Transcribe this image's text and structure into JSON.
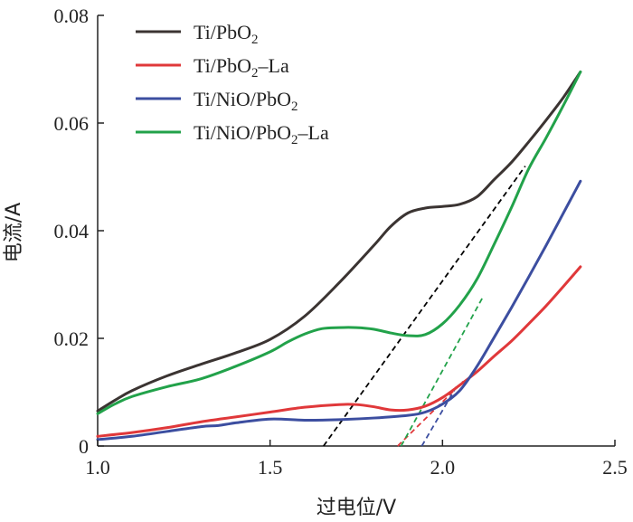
{
  "chart_data": {
    "type": "line",
    "title": "",
    "xlabel": "过电位/V",
    "ylabel": "电流/A",
    "xlim": [
      1.0,
      2.5
    ],
    "ylim": [
      0,
      0.08
    ],
    "xticks": [
      1.0,
      1.5,
      2.0,
      2.5
    ],
    "xtick_labels": [
      "1.0",
      "1.5",
      "2.0",
      "2.5"
    ],
    "yticks": [
      0,
      0.02,
      0.04,
      0.06,
      0.08
    ],
    "ytick_labels": [
      "0",
      "0.02",
      "0.04",
      "0.06",
      "0.08"
    ],
    "grid": false,
    "legend_position": "top-left",
    "series": [
      {
        "name": "Ti/PbO2",
        "legend_main": "Ti/PbO",
        "legend_sub": "2",
        "legend_suffix": "",
        "color": "#3b3432",
        "x": [
          1.0,
          1.05,
          1.1,
          1.2,
          1.3,
          1.4,
          1.5,
          1.6,
          1.7,
          1.8,
          1.85,
          1.9,
          1.95,
          2.0,
          2.05,
          2.1,
          2.15,
          2.2,
          2.25,
          2.3,
          2.35,
          2.4
        ],
        "y": [
          0.0065,
          0.0085,
          0.0103,
          0.013,
          0.0152,
          0.0173,
          0.0198,
          0.0241,
          0.0303,
          0.0372,
          0.0408,
          0.0433,
          0.0442,
          0.0445,
          0.0449,
          0.0463,
          0.0495,
          0.0527,
          0.0565,
          0.0605,
          0.0647,
          0.0695
        ]
      },
      {
        "name": "Ti/PbO2-La",
        "legend_main": "Ti/PbO",
        "legend_sub": "2",
        "legend_suffix": "–La",
        "color": "#e0383a",
        "x": [
          1.0,
          1.1,
          1.2,
          1.3,
          1.4,
          1.5,
          1.6,
          1.7,
          1.75,
          1.8,
          1.85,
          1.9,
          1.95,
          2.0,
          2.05,
          2.1,
          2.15,
          2.2,
          2.25,
          2.3,
          2.35,
          2.4
        ],
        "y": [
          0.0018,
          0.0025,
          0.0034,
          0.0045,
          0.0054,
          0.0063,
          0.0072,
          0.0077,
          0.0077,
          0.0073,
          0.0067,
          0.0067,
          0.0074,
          0.009,
          0.0113,
          0.0138,
          0.0167,
          0.0195,
          0.0227,
          0.026,
          0.0296,
          0.0333
        ]
      },
      {
        "name": "Ti/NiO/PbO2",
        "legend_main": "Ti/NiO/PbO",
        "legend_sub": "2",
        "legend_suffix": "",
        "color": "#3c4ea0",
        "x": [
          1.0,
          1.1,
          1.2,
          1.3,
          1.35,
          1.4,
          1.5,
          1.6,
          1.7,
          1.8,
          1.9,
          1.95,
          2.0,
          2.05,
          2.1,
          2.15,
          2.2,
          2.25,
          2.3,
          2.35,
          2.4
        ],
        "y": [
          0.0012,
          0.0018,
          0.0027,
          0.0036,
          0.0038,
          0.0043,
          0.005,
          0.0048,
          0.0049,
          0.0052,
          0.0057,
          0.0063,
          0.0078,
          0.0103,
          0.0148,
          0.0202,
          0.0257,
          0.0314,
          0.0372,
          0.0432,
          0.0492
        ]
      },
      {
        "name": "Ti/NiO/PbO2-La",
        "legend_main": "Ti/NiO/PbO",
        "legend_sub": "2",
        "legend_suffix": "–La",
        "color": "#22a24a",
        "x": [
          1.0,
          1.05,
          1.1,
          1.2,
          1.3,
          1.4,
          1.5,
          1.55,
          1.6,
          1.65,
          1.7,
          1.75,
          1.8,
          1.85,
          1.9,
          1.95,
          2.0,
          2.05,
          2.1,
          2.15,
          2.2,
          2.25,
          2.3,
          2.35,
          2.4
        ],
        "y": [
          0.006,
          0.0078,
          0.0092,
          0.011,
          0.0125,
          0.0148,
          0.0175,
          0.0193,
          0.0208,
          0.0218,
          0.022,
          0.022,
          0.0217,
          0.021,
          0.0205,
          0.0207,
          0.0227,
          0.0262,
          0.031,
          0.0375,
          0.0443,
          0.0515,
          0.0572,
          0.0632,
          0.0695
        ]
      }
    ],
    "tangent_lines": [
      {
        "color": "#000000",
        "x": [
          1.655,
          2.24
        ],
        "y": [
          0,
          0.052
        ]
      },
      {
        "color": "#e0383a",
        "x": [
          1.87,
          2.06
        ],
        "y": [
          0,
          0.012
        ]
      },
      {
        "color": "#3c4ea0",
        "x": [
          1.94,
          2.04
        ],
        "y": [
          0,
          0.011
        ]
      },
      {
        "color": "#22a24a",
        "x": [
          1.88,
          2.12
        ],
        "y": [
          0,
          0.028
        ]
      }
    ]
  }
}
